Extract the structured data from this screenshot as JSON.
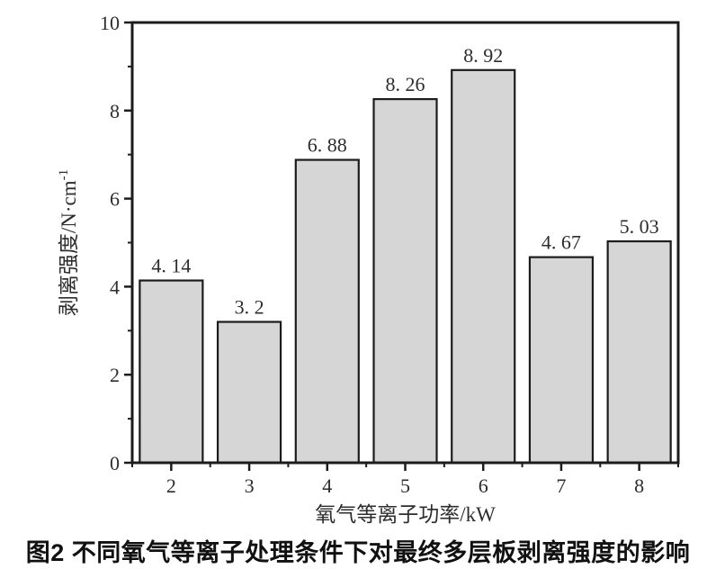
{
  "figure": {
    "caption": "图2 不同氧气等离子处理条件下对最终多层板剥离强度的影响"
  },
  "chart_data": {
    "type": "bar",
    "title": "",
    "categories": [
      "2",
      "3",
      "4",
      "5",
      "6",
      "7",
      "8"
    ],
    "values": [
      4.14,
      3.2,
      6.88,
      8.26,
      8.92,
      4.67,
      5.03
    ],
    "bar_labels": [
      "4. 14",
      "3. 2",
      "6. 88",
      "8. 26",
      "8. 92",
      "4. 67",
      "5. 03"
    ],
    "xlabel": "氧气等离子功率/kW",
    "ylabel": "剥离强度/N·cm⁻¹",
    "ylabel_base": "剥离强度/N·cm",
    "ylabel_exponent": "-1",
    "ylim": [
      0,
      10
    ],
    "yticks_major": [
      0,
      2,
      4,
      6,
      8,
      10
    ],
    "yticks_minor": [
      1,
      3,
      5,
      7,
      9
    ],
    "grid": false,
    "legend_position": "none",
    "bar_fill": "#d6d6d6",
    "bar_border": "#1c1c1c",
    "axis_color": "#1c1c1c",
    "text_color": "#2d2d2d"
  }
}
